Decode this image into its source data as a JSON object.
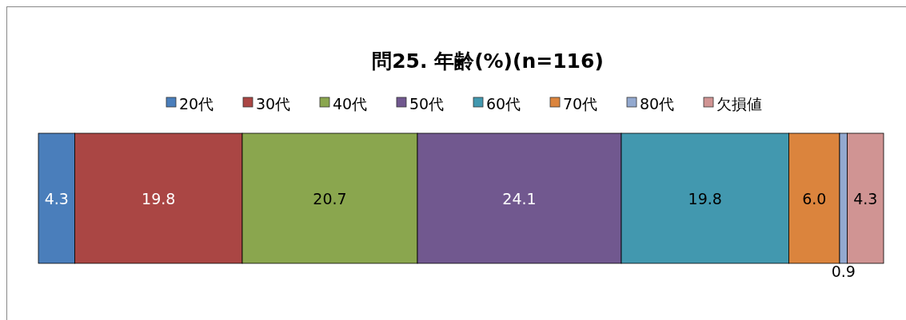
{
  "chart_data": {
    "type": "bar",
    "title": "問25. 年齢(%)(n=116)",
    "orientation": "horizontal",
    "stacked": true,
    "categories": [
      null
    ],
    "legend": "top",
    "series": [
      {
        "name": "20代",
        "color": "#4a7ebb",
        "values": [
          4.3
        ],
        "value_labels": [
          "4.3"
        ]
      },
      {
        "name": "30代",
        "color": "#aa4644",
        "values": [
          19.8
        ],
        "value_labels": [
          "19.8"
        ]
      },
      {
        "name": "40代",
        "color": "#8aa64e",
        "values": [
          20.7
        ],
        "value_labels": [
          "20.7"
        ]
      },
      {
        "name": "50代",
        "color": "#71588f",
        "values": [
          24.1
        ],
        "value_labels": [
          "24.1"
        ]
      },
      {
        "name": "60代",
        "color": "#4298af",
        "values": [
          19.8
        ],
        "value_labels": [
          "19.8"
        ]
      },
      {
        "name": "70代",
        "color": "#db843d",
        "values": [
          6.0
        ],
        "value_labels": [
          "6.0"
        ]
      },
      {
        "name": "80代",
        "color": "#93a9cf",
        "values": [
          0.9
        ],
        "value_labels": [
          "0.9"
        ]
      },
      {
        "name": "欠損値",
        "color": "#d09493",
        "values": [
          4.3
        ],
        "value_labels": [
          "4.3"
        ]
      }
    ]
  }
}
